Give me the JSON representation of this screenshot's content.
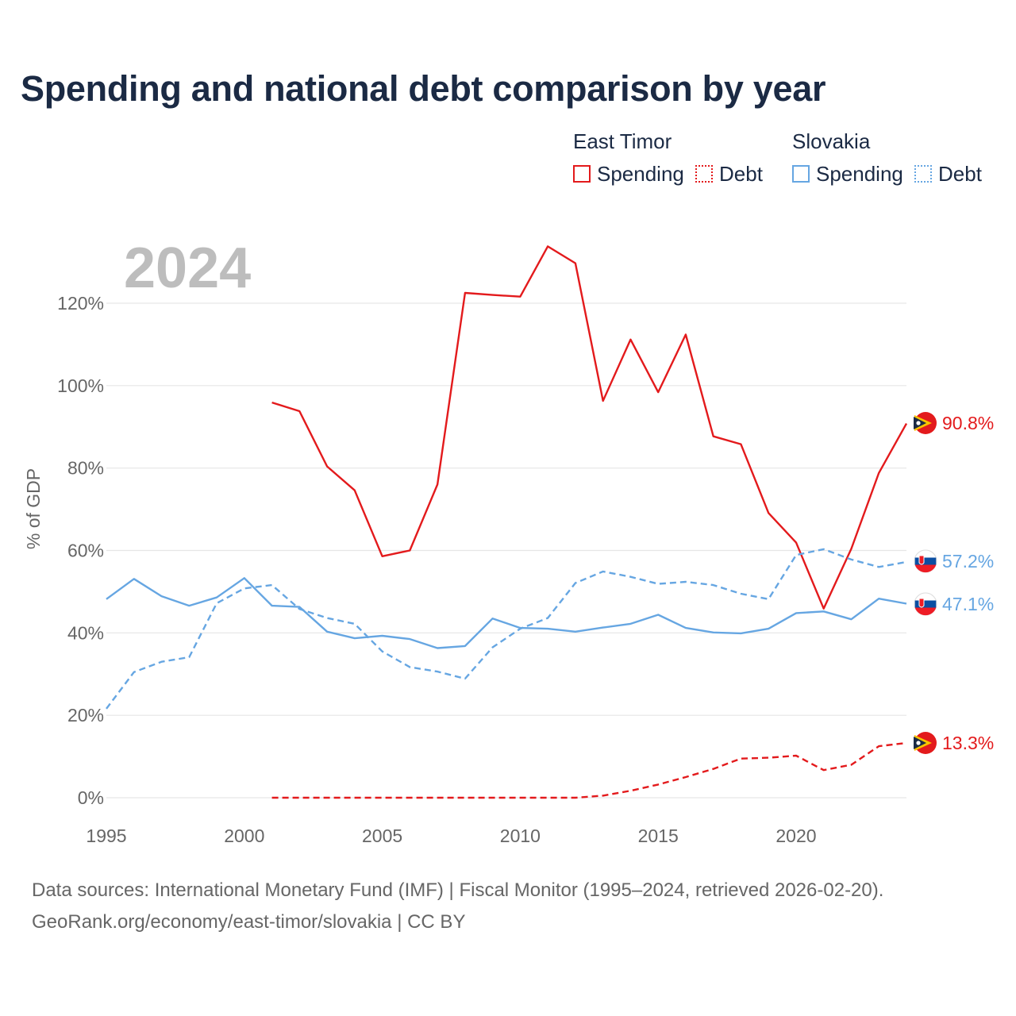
{
  "title": "Spending and national debt comparison by year",
  "year_watermark": "2024",
  "legend": {
    "groups": [
      {
        "country": "East Timor",
        "items": [
          "Spending",
          "Debt"
        ]
      },
      {
        "country": "Slovakia",
        "items": [
          "Spending",
          "Debt"
        ]
      }
    ]
  },
  "colors": {
    "east_timor": "#e31a1c",
    "slovakia": "#66a6e2",
    "grid": "#e6e6e6",
    "flag_dark": "#1b2a44"
  },
  "chart_data": {
    "type": "line",
    "title": "Spending and national debt comparison by year",
    "xlabel": "",
    "ylabel": "% of GDP",
    "xlim": [
      1995,
      2024
    ],
    "ylim": [
      0,
      130
    ],
    "xticks": [
      1995,
      2000,
      2005,
      2010,
      2015,
      2020
    ],
    "xtick_labels": [
      "1995",
      "2000",
      "2005",
      "2010",
      "2015",
      "2020"
    ],
    "yticks": [
      0,
      20,
      40,
      60,
      80,
      100,
      120
    ],
    "ytick_labels": [
      "0%",
      "20%",
      "40%",
      "60%",
      "80%",
      "100%",
      "120%"
    ],
    "grid": true,
    "series": [
      {
        "name": "East Timor Spending",
        "country": "East Timor",
        "metric": "Spending",
        "style": "solid",
        "x": [
          2001,
          2002,
          2003,
          2004,
          2005,
          2006,
          2007,
          2008,
          2009,
          2010,
          2011,
          2012,
          2013,
          2014,
          2015,
          2016,
          2017,
          2018,
          2019,
          2020,
          2021,
          2022,
          2023,
          2024
        ],
        "values": [
          95.9,
          93.8,
          80.4,
          74.6,
          58.6,
          60.0,
          76.0,
          122.5,
          122.0,
          121.6,
          133.8,
          129.7,
          96.3,
          111.2,
          98.4,
          112.4,
          87.7,
          85.8,
          69.1,
          61.9,
          45.9,
          60.4,
          78.8,
          90.8
        ],
        "end_label": "90.8%"
      },
      {
        "name": "East Timor Debt",
        "country": "East Timor",
        "metric": "Debt",
        "style": "dashed",
        "x": [
          2001,
          2002,
          2003,
          2004,
          2005,
          2006,
          2007,
          2008,
          2009,
          2010,
          2011,
          2012,
          2013,
          2014,
          2015,
          2016,
          2017,
          2018,
          2019,
          2020,
          2021,
          2022,
          2023,
          2024
        ],
        "values": [
          0,
          0,
          0,
          0,
          0,
          0,
          0,
          0,
          0,
          0,
          0,
          0,
          0.5,
          1.7,
          3.2,
          5.0,
          7.0,
          9.5,
          9.7,
          10.2,
          6.7,
          8.0,
          12.5,
          13.3
        ],
        "end_label": "13.3%"
      },
      {
        "name": "Slovakia Spending",
        "country": "Slovakia",
        "metric": "Spending",
        "style": "solid",
        "x": [
          1995,
          1996,
          1997,
          1998,
          1999,
          2000,
          2001,
          2002,
          2003,
          2004,
          2005,
          2006,
          2007,
          2008,
          2009,
          2010,
          2011,
          2012,
          2013,
          2014,
          2015,
          2016,
          2017,
          2018,
          2019,
          2020,
          2021,
          2022,
          2023,
          2024
        ],
        "values": [
          48.2,
          53.1,
          48.9,
          46.6,
          48.6,
          53.3,
          46.6,
          46.3,
          40.3,
          38.7,
          39.3,
          38.5,
          36.3,
          36.8,
          43.5,
          41.2,
          41.0,
          40.3,
          41.3,
          42.2,
          44.4,
          41.2,
          40.1,
          39.9,
          41.0,
          44.8,
          45.2,
          43.3,
          48.3,
          47.1
        ],
        "end_label": "47.1%"
      },
      {
        "name": "Slovakia Debt",
        "country": "Slovakia",
        "metric": "Debt",
        "style": "dashed",
        "x": [
          1995,
          1996,
          1997,
          1998,
          1999,
          2000,
          2001,
          2002,
          2003,
          2004,
          2005,
          2006,
          2007,
          2008,
          2009,
          2010,
          2011,
          2012,
          2013,
          2014,
          2015,
          2016,
          2017,
          2018,
          2019,
          2020,
          2021,
          2022,
          2023,
          2024
        ],
        "values": [
          21.6,
          30.5,
          33.0,
          34.1,
          47.2,
          50.8,
          51.6,
          45.8,
          43.6,
          42.2,
          35.5,
          31.7,
          30.6,
          28.9,
          36.5,
          41.0,
          43.6,
          52.1,
          54.9,
          53.6,
          51.9,
          52.4,
          51.6,
          49.5,
          48.2,
          58.9,
          60.3,
          57.8,
          56.0,
          57.2
        ],
        "end_label": "57.2%"
      }
    ]
  },
  "footer": {
    "line1": "Data sources: International Monetary Fund (IMF) | Fiscal Monitor (1995–2024, retrieved 2026-02-20).",
    "line2": "GeoRank.org/economy/east-timor/slovakia | CC BY"
  }
}
